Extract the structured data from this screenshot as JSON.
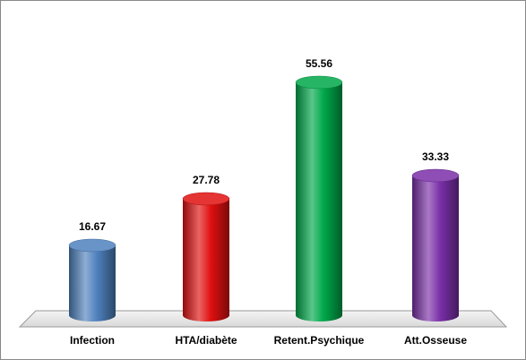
{
  "chart_data": {
    "type": "cylinder-bar",
    "categories": [
      "Infection",
      "HTA/diabète",
      "Retent.Psychique",
      "Att.Osseuse"
    ],
    "values": [
      16.67,
      27.78,
      55.56,
      33.33
    ],
    "colors": [
      "#4f81bd",
      "#e01010",
      "#00a84a",
      "#7a2fa8"
    ]
  }
}
